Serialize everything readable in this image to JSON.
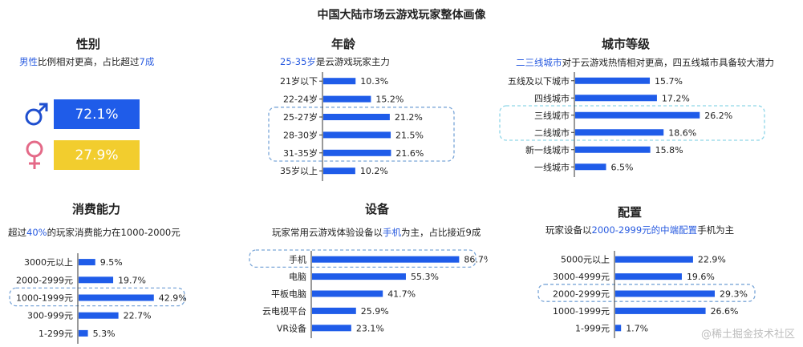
{
  "page_title": "中国大陆市场云游戏玩家整体画像",
  "watermark": "@稀土掘金技术社区",
  "colors": {
    "bar": "#1f5ce9",
    "female": "#f2cd2e",
    "male_icon": "#1f4fcf",
    "female_icon": "#e46a88",
    "highlight": "#2a5ce0",
    "dash": "#7aa6d8",
    "dash_cyan": "#8fd6e8"
  },
  "gender": {
    "title": "性别",
    "sub_hl": "男性",
    "sub_mid": "比例相对更高，占比超过",
    "sub_hl2": "7成",
    "male": {
      "icon": "male-icon",
      "label": "72.1%",
      "value": 72.1
    },
    "female": {
      "icon": "female-icon",
      "label": "27.9%",
      "value": 27.9
    }
  },
  "age": {
    "title": "年龄",
    "sub_hl": "25-35岁",
    "sub_rest": "是云游戏玩家主力"
  },
  "city": {
    "title": "城市等级",
    "sub_hl": "二三线城市",
    "sub_rest": "对于云游戏热情相对更高，四五线城市具备较大潜力"
  },
  "spending": {
    "title": "消费能力",
    "sub_pre": "超过",
    "sub_hl": "40%",
    "sub_rest": "的玩家消费能力在1000-2000元"
  },
  "device": {
    "title": "设备",
    "sub_pre": "玩家常用云游戏体验设备以",
    "sub_hl": "手机",
    "sub_rest": "为主，占比接近9成"
  },
  "config": {
    "title": "配置",
    "sub_pre": "玩家设备以",
    "sub_hl": "2000-2999元的中端配置",
    "sub_rest": "手机为主"
  },
  "chart_data": [
    {
      "type": "bar",
      "title": "年龄",
      "categories": [
        "21岁以下",
        "22-24岁",
        "25-27岁",
        "28-30岁",
        "31-35岁",
        "35岁以上"
      ],
      "values": [
        10.3,
        15.2,
        21.2,
        21.5,
        21.6,
        10.2
      ],
      "labels": [
        "10.3%",
        "15.2%",
        "21.2%",
        "21.5%",
        "21.6%",
        "10.2%"
      ],
      "highlight": [
        2,
        3,
        4
      ],
      "unit": "%"
    },
    {
      "type": "bar",
      "title": "城市等级",
      "categories": [
        "五线及以下城市",
        "四线城市",
        "三线城市",
        "二线城市",
        "新一线城市",
        "一线城市"
      ],
      "values": [
        15.7,
        17.2,
        26.2,
        18.6,
        15.8,
        6.5
      ],
      "labels": [
        "15.7%",
        "17.2%",
        "26.2%",
        "18.6%",
        "15.8%",
        "6.5%"
      ],
      "highlight": [
        2,
        3
      ],
      "unit": "%"
    },
    {
      "type": "bar",
      "title": "消费能力",
      "categories": [
        "3000元以上",
        "2000-2999元",
        "1000-1999元",
        "300-999元",
        "1-299元"
      ],
      "values": [
        9.5,
        19.7,
        42.9,
        22.7,
        5.3
      ],
      "labels": [
        "9.5%",
        "19.7%",
        "42.9%",
        "22.7%",
        "5.3%"
      ],
      "highlight": [
        2
      ],
      "unit": "%"
    },
    {
      "type": "bar",
      "title": "设备",
      "categories": [
        "手机",
        "电脑",
        "平板电脑",
        "云电视平台",
        "VR设备"
      ],
      "values": [
        86.7,
        55.3,
        41.7,
        25.9,
        23.1
      ],
      "labels": [
        "86.7%",
        "55.3%",
        "41.7%",
        "25.9%",
        "23.1%"
      ],
      "highlight": [
        0
      ],
      "unit": "%"
    },
    {
      "type": "bar",
      "title": "配置",
      "categories": [
        "5000元以上",
        "3000-4999元",
        "2000-2999元",
        "1000-1999元",
        "1-999元"
      ],
      "values": [
        22.9,
        19.6,
        29.3,
        26.6,
        1.7
      ],
      "labels": [
        "22.9%",
        "19.6%",
        "29.3%",
        "26.6%",
        "1.7%"
      ],
      "highlight": [
        2
      ],
      "unit": "%"
    }
  ]
}
